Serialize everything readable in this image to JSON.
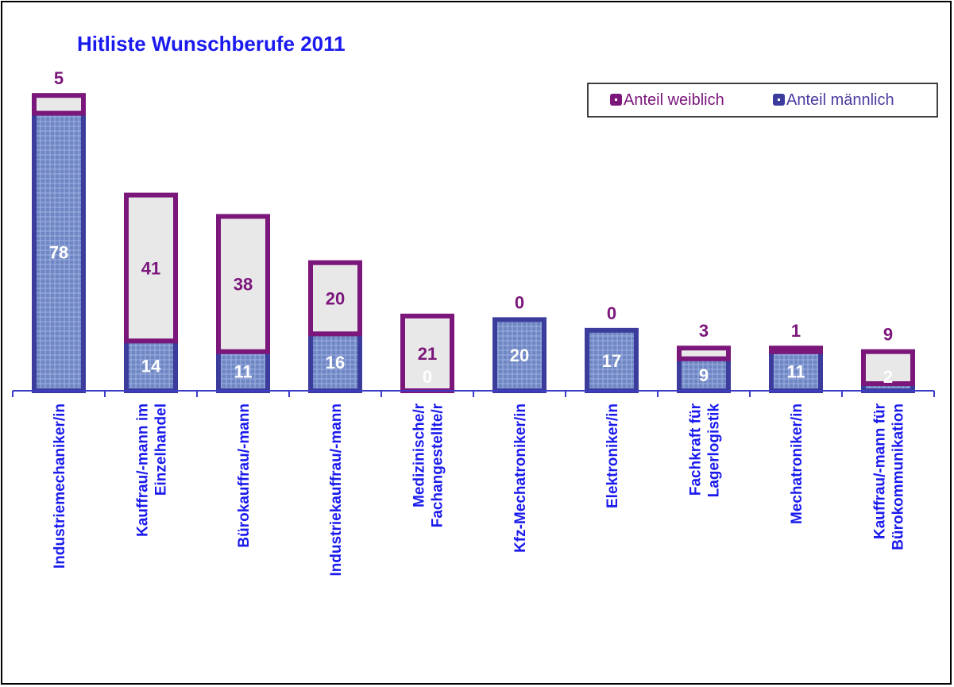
{
  "chart_data": {
    "type": "stacked_bar",
    "title": "Hitliste Wunschberufe 2011",
    "categories": [
      "Industriemechaniker/in",
      "Kauffrau/-mann im\nEinzelhandel",
      "Bürokauffrau/-mann",
      "Industriekauffrau/-mann",
      "Medizinische/r\nFachangestellte/r",
      "Kfz-Mechatroniker/in",
      "Elektroniker/in",
      "Fachkraft für\nLagerlogistik",
      "Mechatroniker/in",
      "Kauffrau/-mann für\nBürokommunikation"
    ],
    "series": [
      {
        "name": "Anteil männlich",
        "color": "#3c3c9c",
        "values": [
          78,
          14,
          11,
          16,
          0,
          20,
          17,
          9,
          11,
          2
        ]
      },
      {
        "name": "Anteil weiblich",
        "color": "#7b167b",
        "values": [
          5,
          41,
          38,
          20,
          21,
          0,
          0,
          3,
          1,
          9
        ]
      }
    ],
    "ylim": [
      0,
      100
    ],
    "legend": "top-right"
  }
}
